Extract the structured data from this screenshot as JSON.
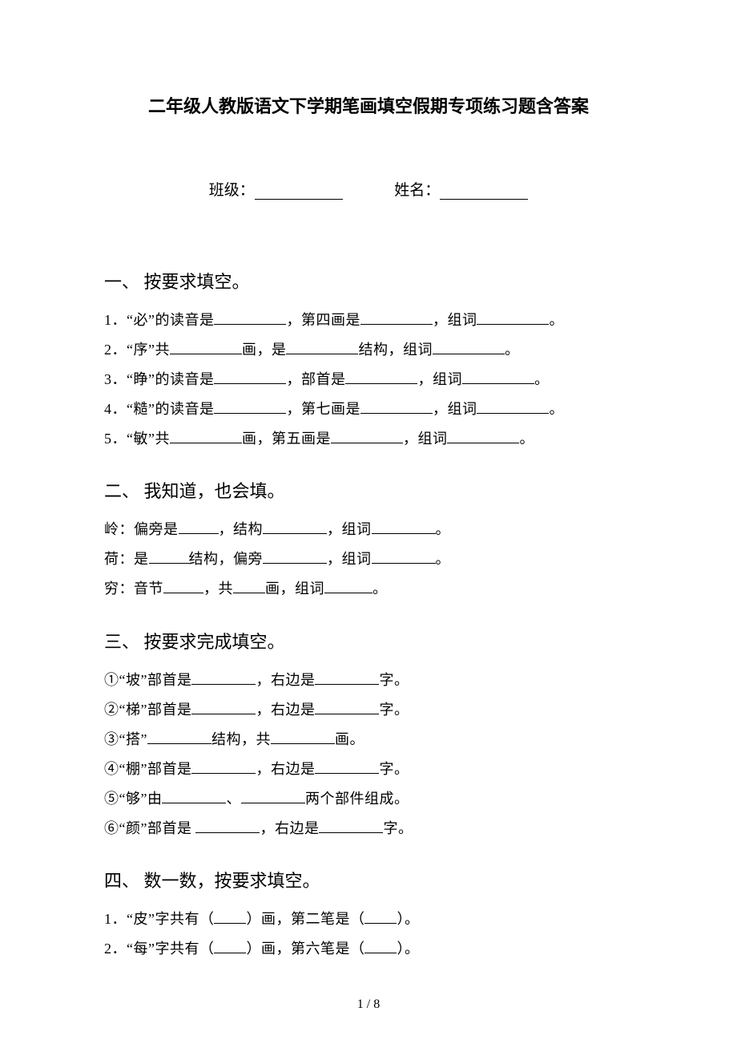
{
  "document": {
    "title": "二年级人教版语文下学期笔画填空假期专项练习题含答案",
    "form": {
      "class_label": "班级：",
      "name_label": "姓名："
    },
    "page_number": "1 / 8"
  },
  "sections": {
    "s1": {
      "heading": "一、 按要求填空。",
      "q1_a": "1．“必”的读音是",
      "q1_b": "，第四画是",
      "q1_c": "，组词",
      "q1_d": "。",
      "q2_a": "2．“序”共",
      "q2_b": "画，是",
      "q2_c": "结构，组词",
      "q2_d": "。",
      "q3_a": "3．“睁”的读音是",
      "q3_b": "，部首是",
      "q3_c": "，组词",
      "q3_d": "。",
      "q4_a": "4．“糙”的读音是",
      "q4_b": "，第七画是",
      "q4_c": "，组词",
      "q4_d": "。",
      "q5_a": "5．“敏”共",
      "q5_b": "画，第五画是",
      "q5_c": "，组词",
      "q5_d": "。"
    },
    "s2": {
      "heading": "二、 我知道，也会填。",
      "q1_a": "岭：偏旁是",
      "q1_b": "，结构",
      "q1_c": "，组词",
      "q1_d": "。",
      "q2_a": "荷：是",
      "q2_b": "结构，偏旁",
      "q2_c": "，组词",
      "q2_d": "。",
      "q3_a": "穷：音节",
      "q3_b": "，共",
      "q3_c": "画，组词",
      "q3_d": "。"
    },
    "s3": {
      "heading": "三、 按要求完成填空。",
      "q1_a": "①“坡”部首是",
      "q1_b": "，右边是",
      "q1_c": "字。",
      "q2_a": "②“梯”部首是",
      "q2_b": "，右边是",
      "q2_c": "字。",
      "q3_a": "③“搭”",
      "q3_b": "结构，共",
      "q3_c": "画。",
      "q4_a": "④“棚”部首是",
      "q4_b": "，右边是",
      "q4_c": "字。",
      "q5_a": "⑤“够”由",
      "q5_b": "、",
      "q5_c": "两个部件组成。",
      "q6_a": "⑥“颜”部首是 ",
      "q6_b": "，右边是",
      "q6_c": "字。"
    },
    "s4": {
      "heading": "四、 数一数，按要求填空。",
      "q1_a": "1．“皮”字共有（",
      "q1_b": "）画，第二笔是（",
      "q1_c": "）。",
      "q2_a": "2．“每”字共有（",
      "q2_b": "）画，第六笔是（",
      "q2_c": "）。"
    }
  }
}
